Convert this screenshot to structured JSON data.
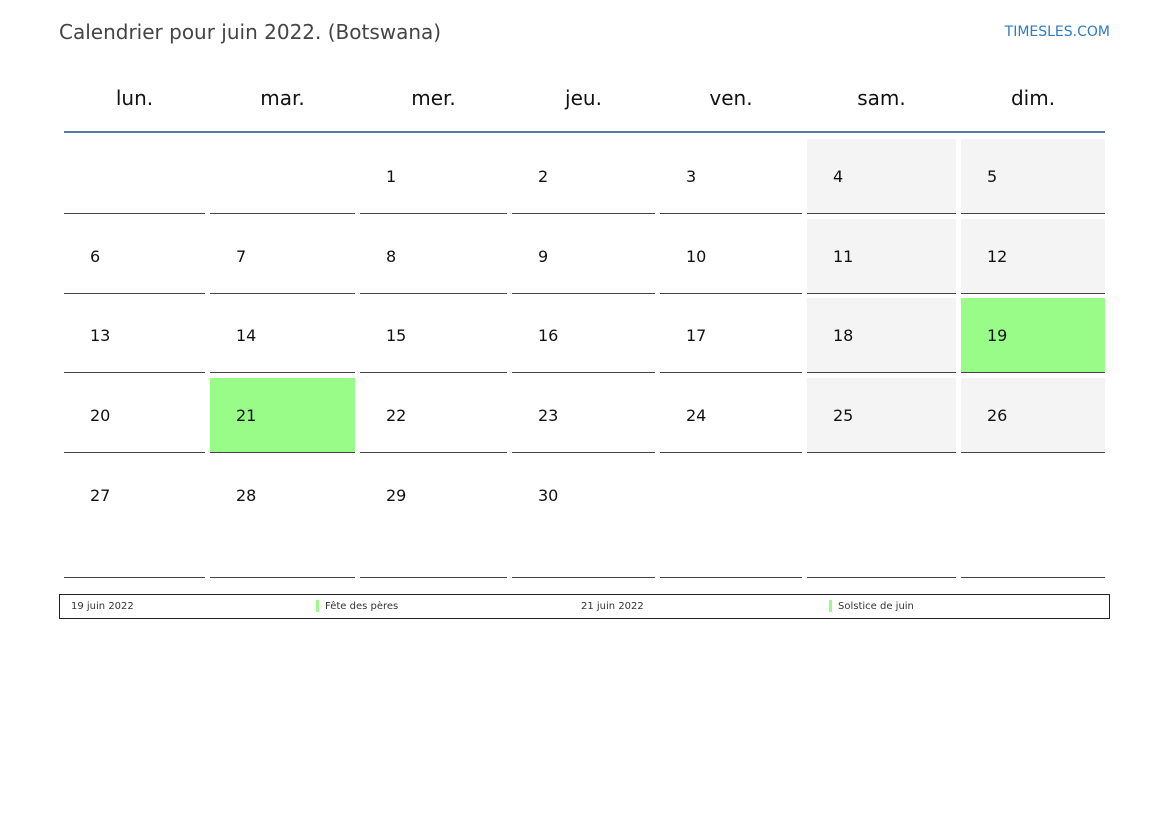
{
  "header": {
    "title": "Calendrier pour juin 2022. (Botswana)",
    "site": "TIMESLES.COM"
  },
  "weekdays": [
    "lun.",
    "mar.",
    "mer.",
    "jeu.",
    "ven.",
    "sam.",
    "dim."
  ],
  "weeks": [
    [
      "",
      "",
      "1",
      "2",
      "3",
      "4",
      "5"
    ],
    [
      "6",
      "7",
      "8",
      "9",
      "10",
      "11",
      "12"
    ],
    [
      "13",
      "14",
      "15",
      "16",
      "17",
      "18",
      "19"
    ],
    [
      "20",
      "21",
      "22",
      "23",
      "24",
      "25",
      "26"
    ],
    [
      "27",
      "28",
      "29",
      "30",
      "",
      "",
      ""
    ]
  ],
  "highlighted_days": [
    "19",
    "21"
  ],
  "colors": {
    "holiday": "#99fc88",
    "weekend": "#f4f4f4",
    "accent_line": "#5a7aa6",
    "link": "#2e7bc4"
  },
  "legend": [
    {
      "date": "19 juin 2022",
      "name": "Fête des pères",
      "color": "#99fc88"
    },
    {
      "date": "21 juin 2022",
      "name": "Solstice de juin",
      "color": "#99fc88"
    }
  ]
}
